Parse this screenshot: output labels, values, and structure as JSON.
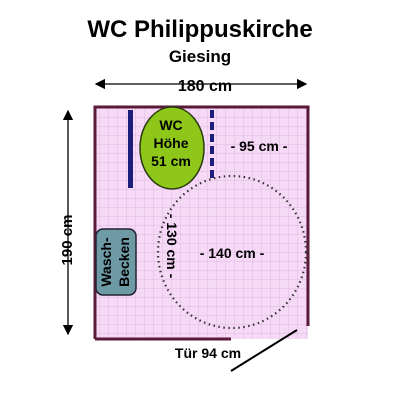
{
  "title": "WC Philippuskirche",
  "subtitle": "Giesing",
  "dimensions": {
    "width_label": "180 cm",
    "height_label": "190 cm",
    "distance_right_label": "- 95 cm -",
    "turning_diameter_label": "- 140 cm -",
    "wc_clearance_label": "- 130 cm -",
    "door_label": "Tür 94 cm"
  },
  "toilet": {
    "line1": "WC",
    "line2": "Höhe",
    "line3": "51 cm",
    "color": "#8ec61a"
  },
  "sink": {
    "line1": "Wasch-",
    "line2": "Becken",
    "color": "#6e9aa6"
  },
  "colors": {
    "floor": "#f6d9f6",
    "wall": "#5a1a3a",
    "grab_bar": "#1d1d7a",
    "circle": "#333333"
  }
}
